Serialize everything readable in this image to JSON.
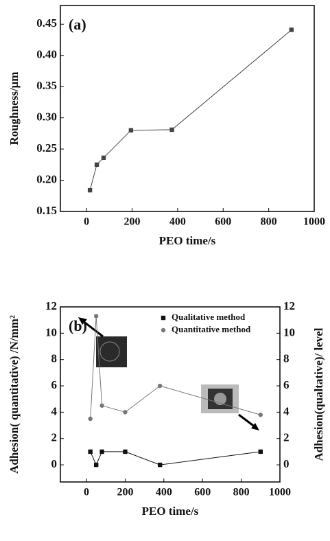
{
  "chart_data": [
    {
      "type": "line",
      "label": "(a)",
      "x_label": "PEO time/s",
      "y_label": "Roughness/μm",
      "x": [
        15,
        45,
        75,
        195,
        375,
        900
      ],
      "series": [
        {
          "color": "#444444",
          "marker": "square",
          "values": [
            0.184,
            0.225,
            0.236,
            0.28,
            0.281,
            0.441
          ]
        }
      ],
      "xlim": [
        -115,
        1000
      ],
      "xticks": [
        0,
        200,
        400,
        600,
        800,
        1000
      ],
      "ylim": [
        0.15,
        0.48
      ],
      "yticks": [
        0.15,
        {
          "value": 0.2,
          "label": "0.20"
        },
        0.25,
        {
          "value": 0.3,
          "label": "0.30"
        },
        0.35,
        {
          "value": 0.4,
          "label": "0.40"
        },
        0.45
      ]
    },
    {
      "type": "line",
      "label": "(b)",
      "x_label": "PEO time/s",
      "y_label": "Adhesion( quantitative)  /N/mm²",
      "y2_label": "Adhesion(qualtative)/ level",
      "x": [
        20,
        50,
        80,
        200,
        380,
        900
      ],
      "series": [
        {
          "name": "Qualitative   method",
          "color": "#111111",
          "marker": "square",
          "axis": "y2",
          "values": [
            1,
            0,
            1,
            1,
            0,
            1
          ]
        },
        {
          "name": "Quantitative method",
          "color": "#777777",
          "marker": "circle",
          "values": [
            3.5,
            11.3,
            4.5,
            4,
            6,
            3.8
          ]
        }
      ],
      "legend": "upper right",
      "xlim": [
        -135,
        1000
      ],
      "xticks": [
        0,
        200,
        400,
        600,
        800,
        1000
      ],
      "ylim": [
        -1.3,
        12
      ],
      "yticks": [
        0,
        2,
        4,
        6,
        8,
        10,
        12
      ],
      "y2lim": [
        -1.3,
        12
      ],
      "y2ticks": [
        0,
        2,
        4,
        6,
        8,
        10,
        12
      ]
    }
  ]
}
